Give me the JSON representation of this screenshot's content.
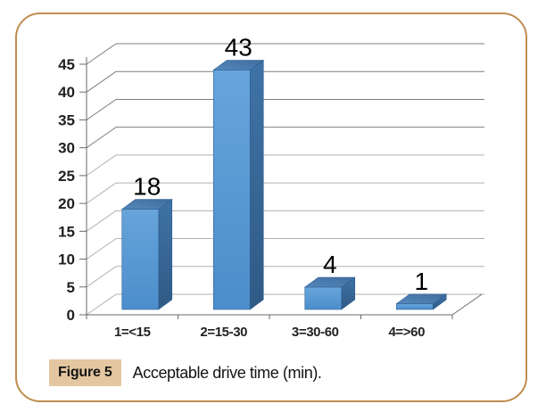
{
  "figure": {
    "caption": {
      "tag": "Figure 5",
      "text": "Acceptable drive time (min)."
    }
  },
  "chart_data": {
    "type": "bar",
    "projection": "3d",
    "title": "",
    "xlabel": "",
    "ylabel": "",
    "categories": [
      "1=<15",
      "2=15-30",
      "3=30-60",
      "4=>60"
    ],
    "values": [
      18,
      43,
      4,
      1
    ],
    "data_labels": [
      "18",
      "43",
      "4",
      "1"
    ],
    "yticks": [
      0,
      5,
      10,
      15,
      20,
      25,
      30,
      35,
      40,
      45
    ],
    "ylim": [
      0,
      45
    ],
    "grid": true,
    "legend": false
  },
  "colors": {
    "frame_border": "#c08d51",
    "caption_tag_bg": "#e4c7a0",
    "caption_text": "#141414",
    "bar_front_top": "#68a4db",
    "bar_front_bottom": "#4b8dcb",
    "bar_top_front": "#5589bd",
    "bar_top_back": "#3f6c9e",
    "bar_side_top": "#3f73a6",
    "bar_side_bottom": "#305a85",
    "bar_outline": "#2f5f94",
    "gridline_dark": "#7f7f7f",
    "gridline_light": "#b1b1b1",
    "axis": "#6a6a6a",
    "tick_text": "#1f1f1f"
  }
}
